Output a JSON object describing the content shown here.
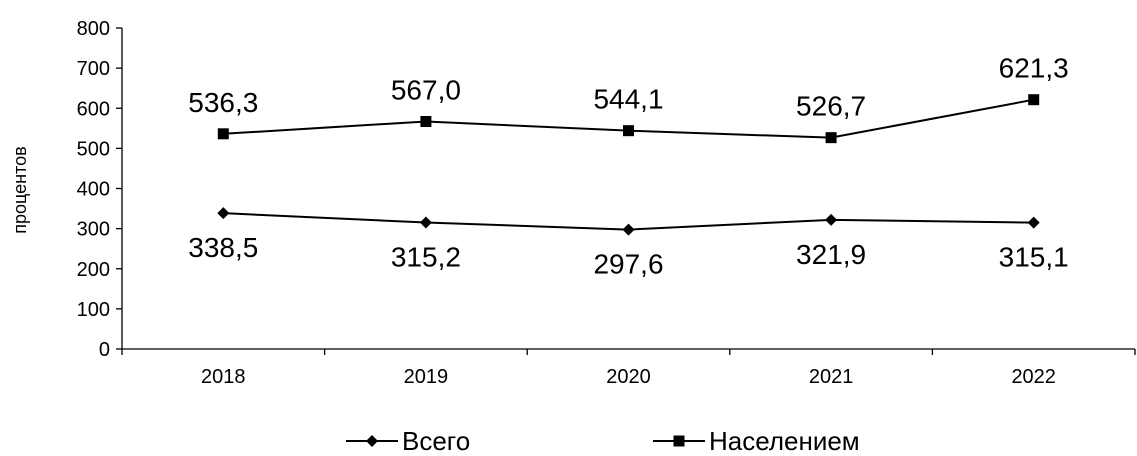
{
  "chart_data": {
    "type": "line",
    "categories": [
      "2018",
      "2019",
      "2020",
      "2021",
      "2022"
    ],
    "series": [
      {
        "name": "Всего",
        "marker": "diamond",
        "values": [
          338.5,
          315.2,
          297.6,
          321.9,
          315.1
        ],
        "labels": [
          "338,5",
          "315,2",
          "297,6",
          "321,9",
          "315,1"
        ]
      },
      {
        "name": "Населением",
        "marker": "square",
        "values": [
          536.3,
          567.0,
          544.1,
          526.7,
          621.3
        ],
        "labels": [
          "536,3",
          "567,0",
          "544,1",
          "526,7",
          "621,3"
        ]
      }
    ],
    "ylabel": "процентов",
    "ylim": [
      0,
      800
    ],
    "yticks": [
      "0",
      "100",
      "200",
      "300",
      "400",
      "500",
      "600",
      "700",
      "800"
    ],
    "grid": false,
    "legend_position": "bottom",
    "line_color": "#000000"
  }
}
